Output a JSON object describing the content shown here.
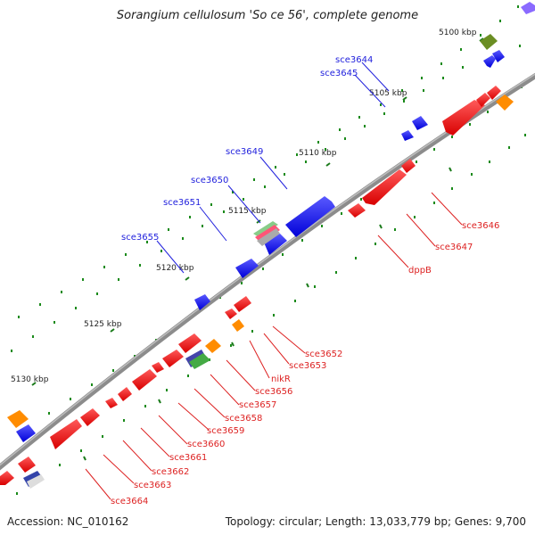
{
  "title": "Sorangium cellulosum 'So ce 56', complete genome",
  "footer": {
    "accession": "Accession: NC_010162",
    "summary": "Topology: circular; Length: 13,033,779 bp; Genes: 9,700"
  },
  "colors": {
    "forward": "#0000ee",
    "reverse": "#ee0000",
    "rna": "#ff8c00",
    "other": "#6b8e23",
    "backbone": "#888888",
    "dots": "#1a8a1a",
    "ticks": "#1a7a1a"
  },
  "scale_labels": [
    "5100 kbp",
    "5105 kbp",
    "5110 kbp",
    "5115 kbp",
    "5120 kbp",
    "5125 kbp",
    "5130 kbp"
  ],
  "gene_labels_forward": [
    "sce3644",
    "sce3645",
    "sce3649",
    "sce3650",
    "sce3651",
    "sce3655"
  ],
  "gene_labels_reverse": [
    "sce3646",
    "sce3647",
    "dppB",
    "sce3652",
    "sce3653",
    "nikR",
    "sce3656",
    "sce3657",
    "sce3658",
    "sce3659",
    "sce3660",
    "sce3661",
    "sce3662",
    "sce3663",
    "sce3664"
  ]
}
